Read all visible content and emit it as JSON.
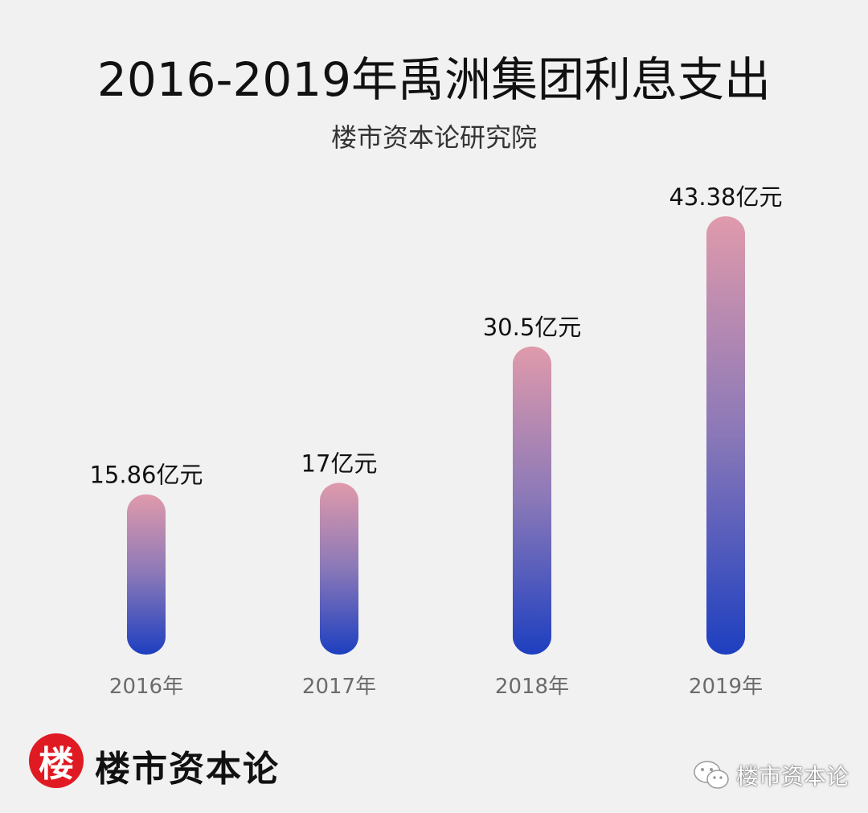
{
  "header": {
    "title": "2016-2019年禹洲集团利息支出",
    "subtitle": "楼市资本论研究院"
  },
  "chart_data": {
    "type": "bar",
    "title": "2016-2019年禹洲集团利息支出",
    "subtitle": "楼市资本论研究院",
    "categories": [
      "2016年",
      "2017年",
      "2018年",
      "2019年"
    ],
    "values": [
      15.86,
      17,
      30.5,
      43.38
    ],
    "data_labels": [
      "15.86亿元",
      "17亿元",
      "30.5亿元",
      "43.38亿元"
    ],
    "xlabel": "",
    "ylabel": "",
    "ylim": [
      0,
      43.38
    ],
    "grid": false,
    "bar_gradient": {
      "top": "#e09aab",
      "middle": "#8a78b8",
      "bottom": "#1d3fc0"
    }
  },
  "footer": {
    "logo_char": "楼",
    "brand": "楼市资本论",
    "wechat_label": "楼市资本论"
  },
  "colors": {
    "background": "#f1f1f1",
    "logo": "#e01a22",
    "category_label": "#6b6b6b"
  }
}
